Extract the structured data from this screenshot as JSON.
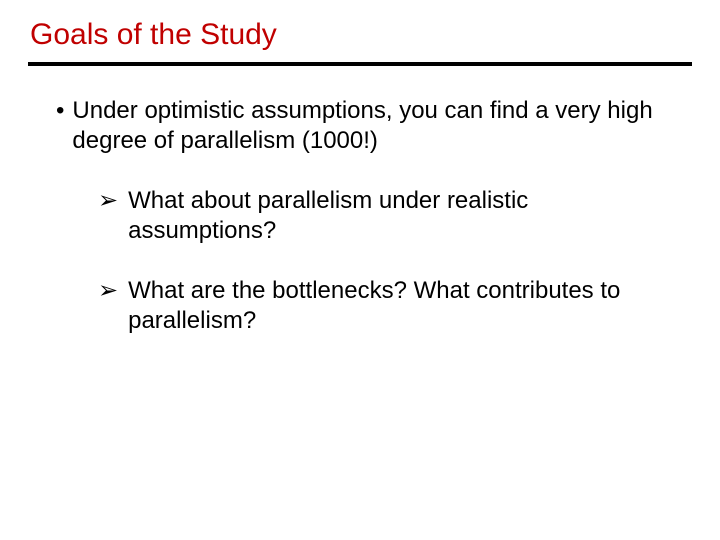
{
  "title": "Goals of the Study",
  "title_color": "#c00000",
  "rule_color": "#000000",
  "text_color": "#000000",
  "background_color": "#ffffff",
  "title_fontsize": 30,
  "body_fontsize": 24,
  "bullet": {
    "marker": "•",
    "text": "Under optimistic assumptions, you can find a very high degree of parallelism (1000!)"
  },
  "sub": {
    "marker": "➢",
    "items": [
      "What about parallelism under realistic assumptions?",
      "What are the bottlenecks? What contributes to parallelism?"
    ]
  }
}
